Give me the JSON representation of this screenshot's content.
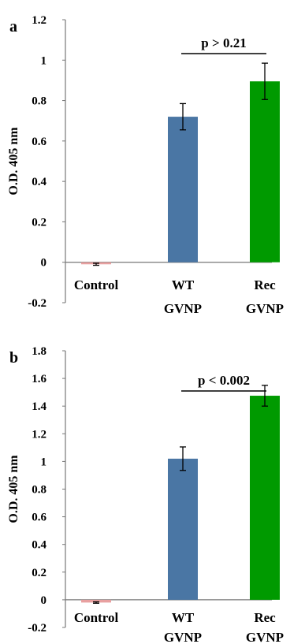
{
  "chart_data": [
    {
      "panel": "a",
      "type": "bar",
      "categories": [
        "Control",
        "WT GVNP",
        "Rec GVNP"
      ],
      "category_lines": [
        [
          "Control"
        ],
        [
          "WT",
          "GVNP"
        ],
        [
          "Rec",
          "GVNP"
        ]
      ],
      "values": [
        -0.01,
        0.72,
        0.895
      ],
      "errors": [
        0.005,
        0.065,
        0.09
      ],
      "colors": [
        "#e8a0a0",
        "#4a76a4",
        "#009a00"
      ],
      "ylabel": "O.D. 405 nm",
      "ylim": [
        -0.2,
        1.2
      ],
      "yticks": [
        -0.2,
        0,
        0.2,
        0.4,
        0.6,
        0.8,
        1,
        1.2
      ],
      "ytick_labels": [
        "-0.2",
        "0",
        "0.2",
        "0.4",
        "0.6",
        "0.8",
        "1",
        "1.2"
      ],
      "annotation": "p > 0.21",
      "bracket": [
        1,
        2
      ],
      "grid": false
    },
    {
      "panel": "b",
      "type": "bar",
      "categories": [
        "Control",
        "WT GVNP",
        "Rec GVNP"
      ],
      "category_lines": [
        [
          "Control"
        ],
        [
          "WT",
          "GVNP"
        ],
        [
          "Rec",
          "GVNP"
        ]
      ],
      "values": [
        -0.02,
        1.02,
        1.475
      ],
      "errors": [
        0.005,
        0.085,
        0.075
      ],
      "colors": [
        "#e8a0a0",
        "#4a76a4",
        "#009a00"
      ],
      "ylabel": "O.D. 405 nm",
      "ylim": [
        -0.2,
        1.8
      ],
      "yticks": [
        -0.2,
        0,
        0.2,
        0.4,
        0.6,
        0.8,
        1,
        1.2,
        1.4,
        1.6,
        1.8
      ],
      "ytick_labels": [
        "-0.2",
        "0",
        "0.2",
        "0.4",
        "0.6",
        "0.8",
        "1",
        "1.2",
        "1.4",
        "1.6",
        "1.8"
      ],
      "annotation": "p < 0.002",
      "bracket": [
        1,
        2
      ],
      "grid": false
    }
  ]
}
